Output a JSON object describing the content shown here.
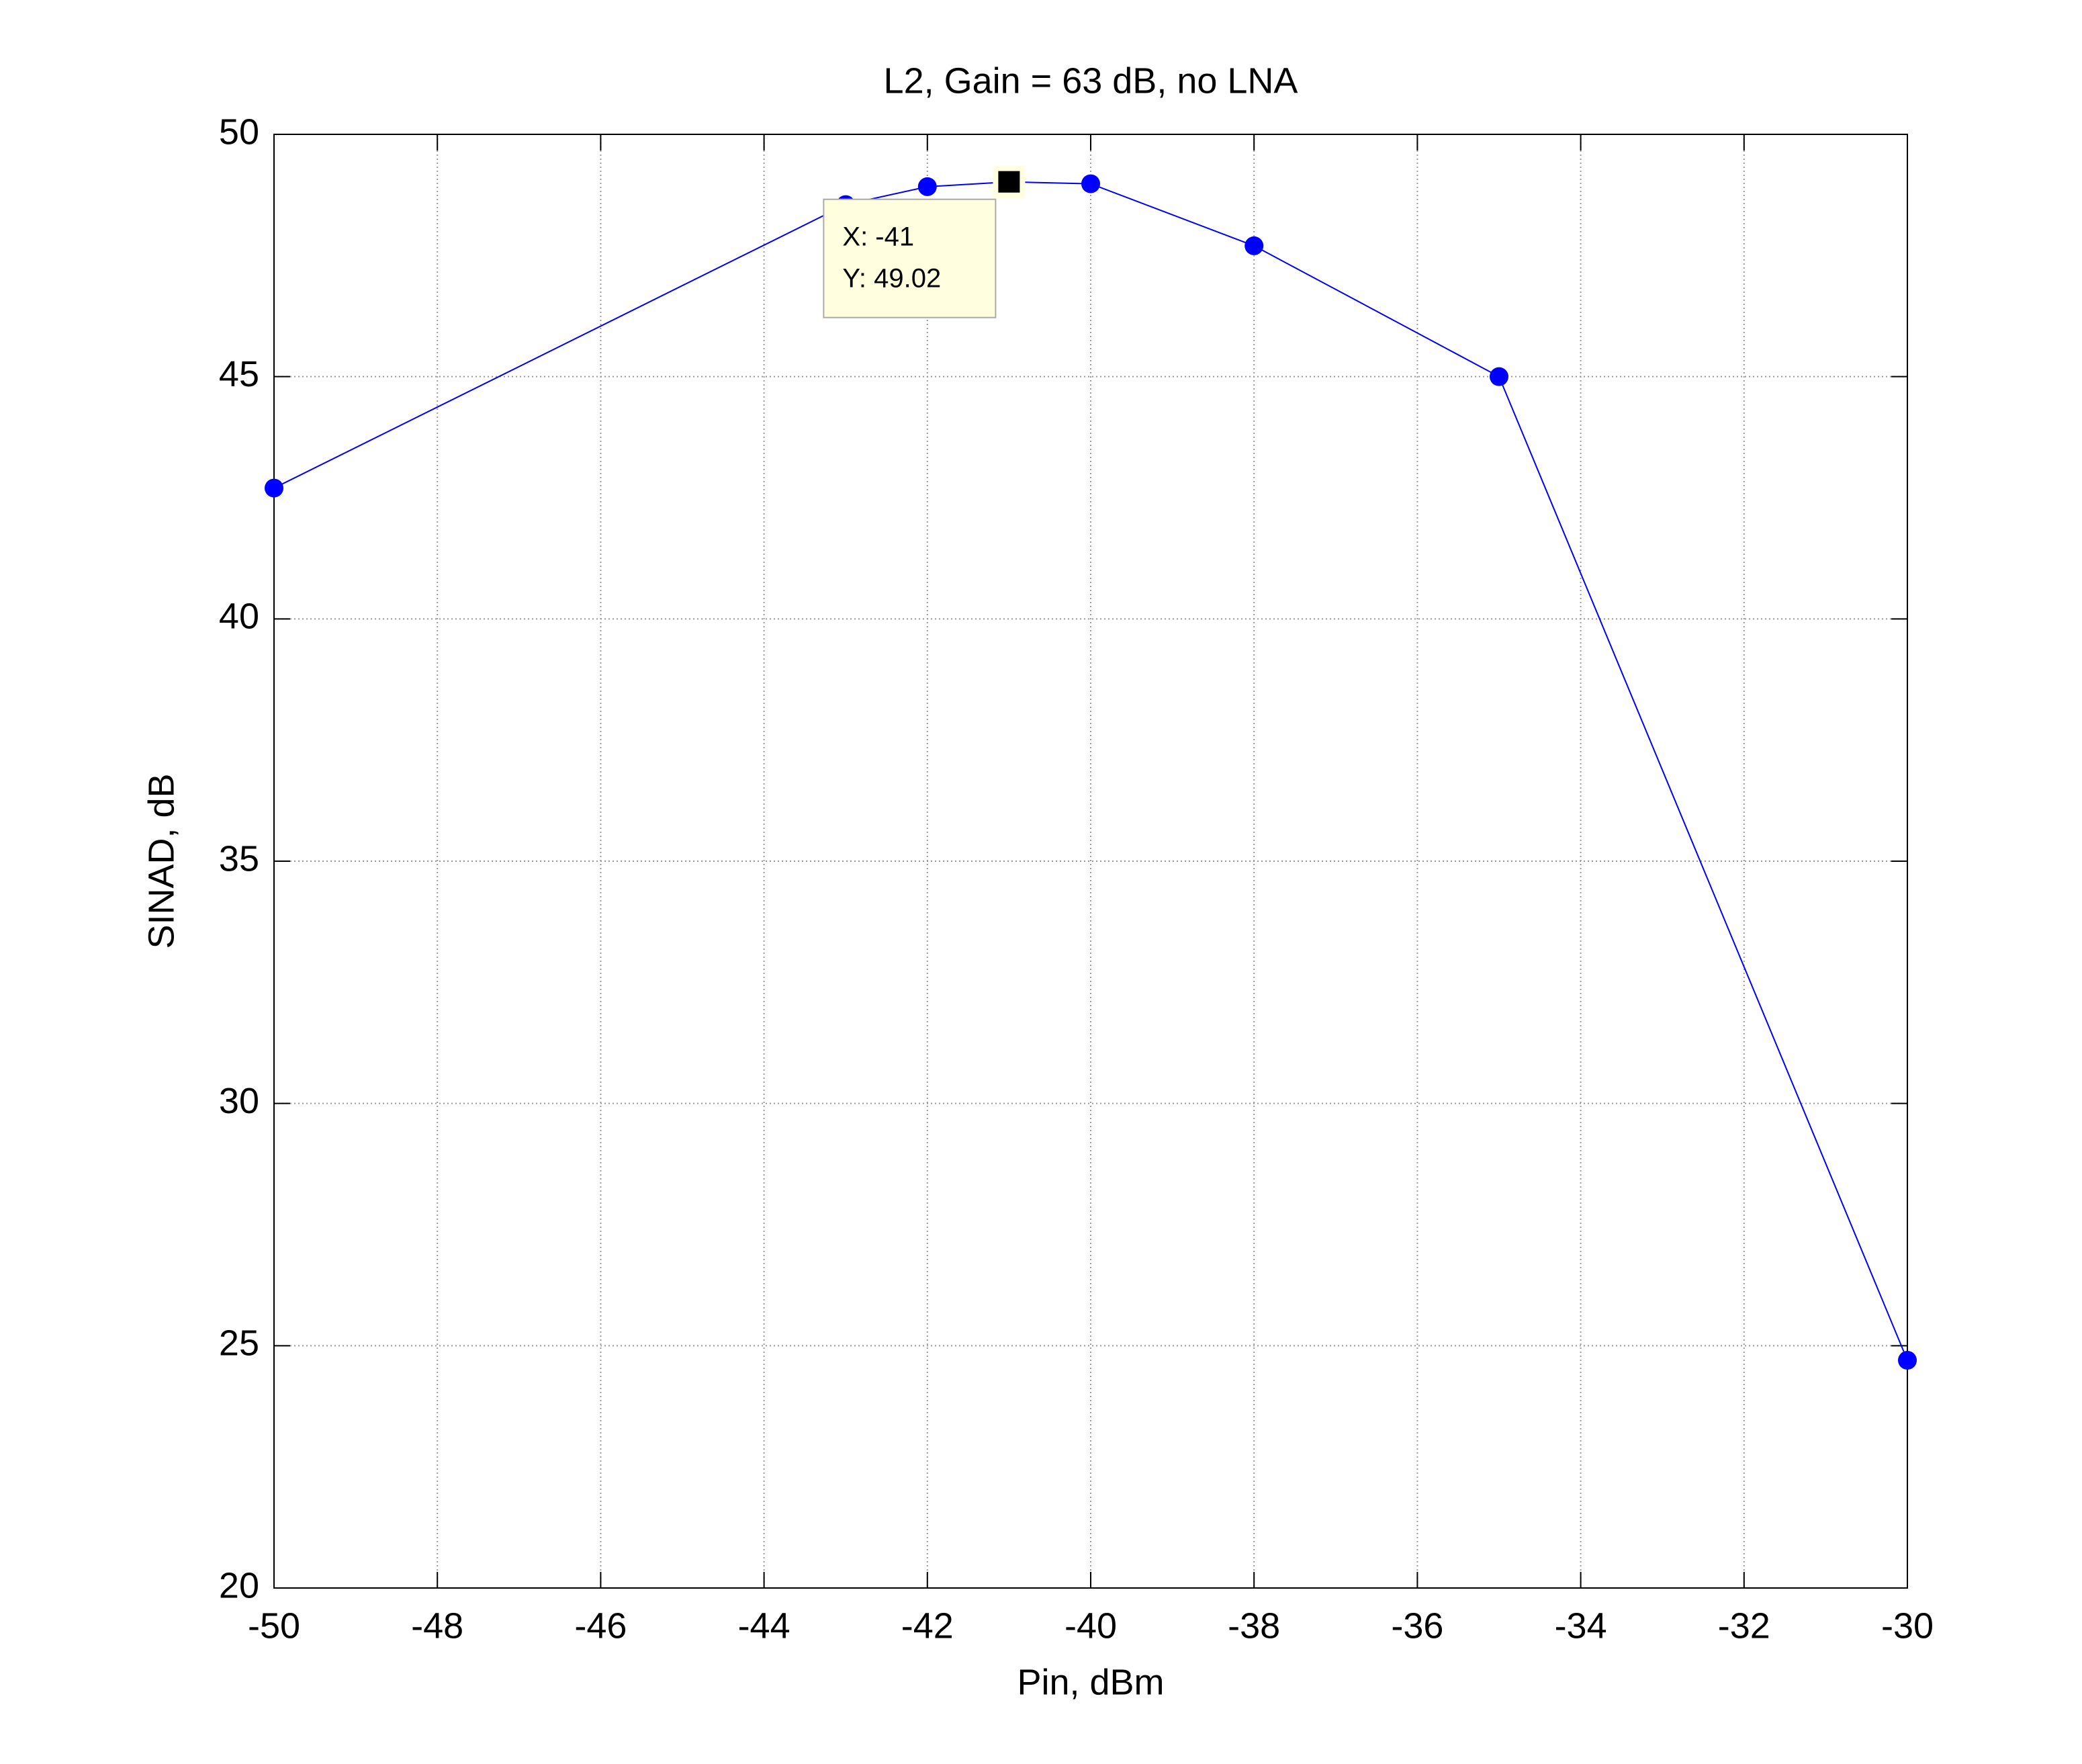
{
  "chart_data": {
    "type": "line",
    "title": "L2, Gain = 63 dB, no LNA",
    "xlabel": "Pin, dBm",
    "ylabel": "SINAD, dB",
    "x": [
      -50,
      -43,
      -42,
      -41,
      -40,
      -38,
      -35,
      -30
    ],
    "series": [
      {
        "name": "SINAD",
        "color": "#0000ff",
        "values": [
          42.7,
          48.55,
          48.92,
          49.02,
          48.98,
          47.7,
          45.0,
          24.7
        ]
      }
    ],
    "xlim": [
      -50,
      -30
    ],
    "xticks": [
      -50,
      -48,
      -46,
      -44,
      -42,
      -40,
      -38,
      -36,
      -34,
      -32,
      -30
    ],
    "ylim": [
      20,
      50
    ],
    "yticks": [
      20,
      25,
      30,
      35,
      40,
      45,
      50
    ],
    "grid": true,
    "datatip": {
      "x": -41,
      "y": 49.02,
      "lines": [
        "X: -41",
        "Y: 49.02"
      ]
    }
  }
}
